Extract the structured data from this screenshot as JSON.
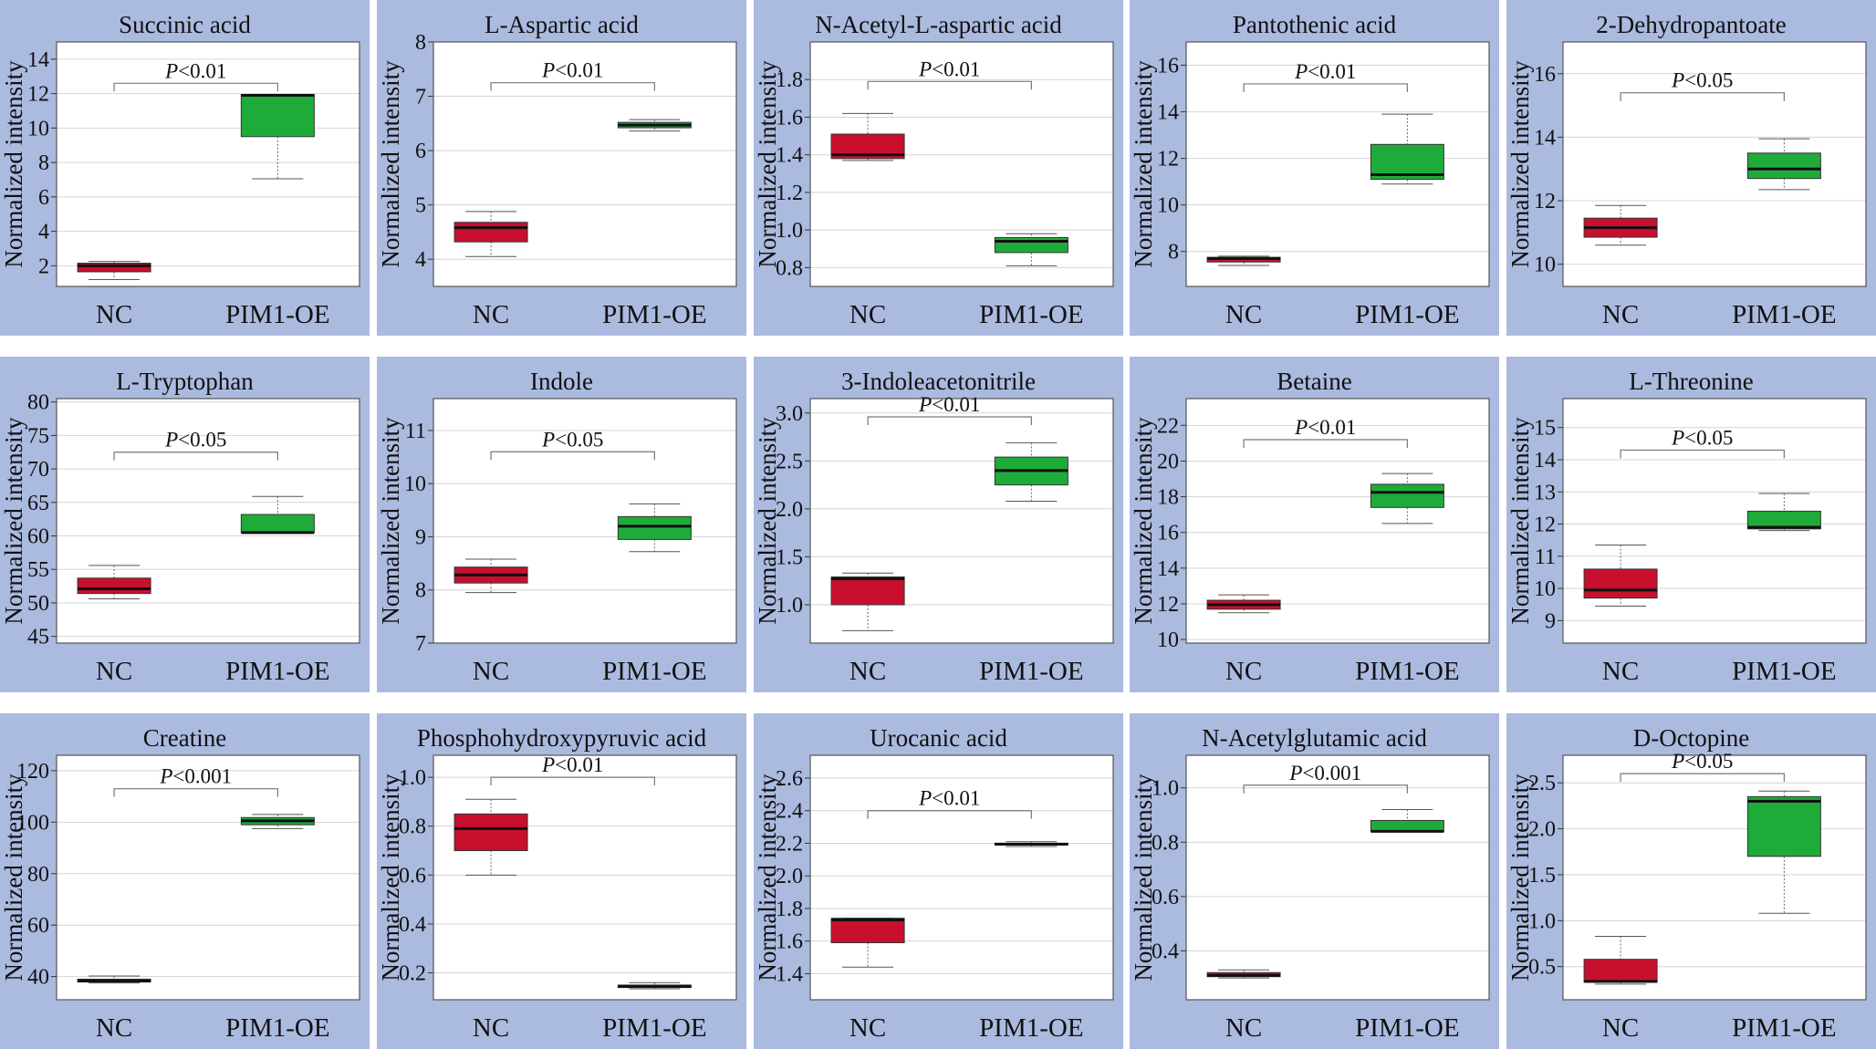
{
  "colors": {
    "panel_bg": "#abbadf",
    "nc": "#c8102e",
    "oe": "#1fab3a"
  },
  "chart_data": [
    {
      "type": "box",
      "title": "Succinic acid",
      "ylabel": "Normalized intensity",
      "categories": [
        "NC",
        "PIM1-OE"
      ],
      "ylim": [
        0.8,
        15
      ],
      "yticks": [
        "2",
        "4",
        "6",
        "8",
        "10",
        "12",
        "14"
      ],
      "p_label": "P<0.01",
      "p_y": 12.6,
      "series": [
        {
          "name": "NC",
          "min": 1.2,
          "q1": 1.65,
          "median": 2.0,
          "q3": 2.15,
          "max": 2.25
        },
        {
          "name": "PIM1-OE",
          "min": 7.05,
          "q1": 9.5,
          "median": 11.9,
          "q3": 11.95,
          "max": 11.95
        }
      ]
    },
    {
      "type": "box",
      "title": "L-Aspartic acid",
      "ylabel": "Normalized intensity",
      "categories": [
        "NC",
        "PIM1-OE"
      ],
      "ylim": [
        3.5,
        8
      ],
      "yticks": [
        "4",
        "5",
        "6",
        "7",
        "8"
      ],
      "p_label": "P<0.01",
      "p_y": 7.25,
      "series": [
        {
          "name": "NC",
          "min": 4.05,
          "q1": 4.32,
          "median": 4.58,
          "q3": 4.68,
          "max": 4.88
        },
        {
          "name": "PIM1-OE",
          "min": 6.36,
          "q1": 6.42,
          "median": 6.47,
          "q3": 6.52,
          "max": 6.57
        }
      ]
    },
    {
      "type": "box",
      "title": "N-Acetyl-L-aspartic acid",
      "ylabel": "Normalized intensity",
      "categories": [
        "NC",
        "PIM1-OE"
      ],
      "ylim": [
        0.7,
        2.0
      ],
      "yticks": [
        "0.8",
        "1.0",
        "1.2",
        "1.4",
        "1.6",
        "1.8"
      ],
      "p_label": "P<0.01",
      "p_y": 1.79,
      "series": [
        {
          "name": "NC",
          "min": 1.37,
          "q1": 1.38,
          "median": 1.4,
          "q3": 1.51,
          "max": 1.62
        },
        {
          "name": "PIM1-OE",
          "min": 0.81,
          "q1": 0.88,
          "median": 0.94,
          "q3": 0.96,
          "max": 0.98
        }
      ]
    },
    {
      "type": "box",
      "title": "Pantothenic acid",
      "ylabel": "Normalized intensity",
      "categories": [
        "NC",
        "PIM1-OE"
      ],
      "ylim": [
        6.5,
        17
      ],
      "yticks": [
        "8",
        "10",
        "12",
        "14",
        "16"
      ],
      "p_label": "P<0.01",
      "p_y": 15.2,
      "series": [
        {
          "name": "NC",
          "min": 7.4,
          "q1": 7.55,
          "median": 7.7,
          "q3": 7.75,
          "max": 7.8
        },
        {
          "name": "PIM1-OE",
          "min": 10.9,
          "q1": 11.1,
          "median": 11.3,
          "q3": 12.6,
          "max": 13.9
        }
      ]
    },
    {
      "type": "box",
      "title": "2-Dehydropantoate",
      "ylabel": "Normalized intensity",
      "categories": [
        "NC",
        "PIM1-OE"
      ],
      "ylim": [
        9.3,
        17
      ],
      "yticks": [
        "10",
        "12",
        "14",
        "16"
      ],
      "p_label": "P<0.05",
      "p_y": 15.4,
      "series": [
        {
          "name": "NC",
          "min": 10.6,
          "q1": 10.85,
          "median": 11.15,
          "q3": 11.45,
          "max": 11.85
        },
        {
          "name": "PIM1-OE",
          "min": 12.35,
          "q1": 12.7,
          "median": 13.0,
          "q3": 13.5,
          "max": 13.95
        }
      ]
    },
    {
      "type": "box",
      "title": "L-Tryptophan",
      "ylabel": "Normalized intensity",
      "categories": [
        "NC",
        "PIM1-OE"
      ],
      "ylim": [
        44,
        80.5
      ],
      "yticks": [
        "45",
        "50",
        "55",
        "60",
        "65",
        "70",
        "75",
        "80"
      ],
      "p_label": "P<0.05",
      "p_y": 72.5,
      "series": [
        {
          "name": "NC",
          "min": 50.6,
          "q1": 51.4,
          "median": 52.1,
          "q3": 53.7,
          "max": 55.6
        },
        {
          "name": "PIM1-OE",
          "min": 60.4,
          "q1": 60.5,
          "median": 60.5,
          "q3": 63.2,
          "max": 65.9
        }
      ]
    },
    {
      "type": "box",
      "title": "Indole",
      "ylabel": "Normalized intensity",
      "categories": [
        "NC",
        "PIM1-OE"
      ],
      "ylim": [
        7,
        11.6
      ],
      "yticks": [
        "7",
        "8",
        "9",
        "10",
        "11"
      ],
      "p_label": "P<0.05",
      "p_y": 10.6,
      "series": [
        {
          "name": "NC",
          "min": 7.95,
          "q1": 8.13,
          "median": 8.28,
          "q3": 8.43,
          "max": 8.58
        },
        {
          "name": "PIM1-OE",
          "min": 8.72,
          "q1": 8.95,
          "median": 9.2,
          "q3": 9.38,
          "max": 9.62
        }
      ]
    },
    {
      "type": "box",
      "title": "3-Indoleacetonitrile",
      "ylabel": "Normalized intensity",
      "categories": [
        "NC",
        "PIM1-OE"
      ],
      "ylim": [
        0.6,
        3.15
      ],
      "yticks": [
        "1.0",
        "1.5",
        "2.0",
        "2.5",
        "3.0"
      ],
      "p_label": "P<0.01",
      "p_y": 2.96,
      "series": [
        {
          "name": "NC",
          "min": 0.73,
          "q1": 1.0,
          "median": 1.27,
          "q3": 1.29,
          "max": 1.33
        },
        {
          "name": "PIM1-OE",
          "min": 2.08,
          "q1": 2.25,
          "median": 2.4,
          "q3": 2.54,
          "max": 2.69
        }
      ]
    },
    {
      "type": "box",
      "title": "Betaine",
      "ylabel": "Normalized intensity",
      "categories": [
        "NC",
        "PIM1-OE"
      ],
      "ylim": [
        9.8,
        23.5
      ],
      "yticks": [
        "10",
        "12",
        "14",
        "16",
        "18",
        "20",
        "22"
      ],
      "p_label": "P<0.01",
      "p_y": 21.2,
      "series": [
        {
          "name": "NC",
          "min": 11.5,
          "q1": 11.7,
          "median": 11.95,
          "q3": 12.2,
          "max": 12.5
        },
        {
          "name": "PIM1-OE",
          "min": 16.5,
          "q1": 17.4,
          "median": 18.25,
          "q3": 18.7,
          "max": 19.3
        }
      ]
    },
    {
      "type": "box",
      "title": "L-Threonine",
      "ylabel": "Normalized intensity",
      "categories": [
        "NC",
        "PIM1-OE"
      ],
      "ylim": [
        8.3,
        15.9
      ],
      "yticks": [
        "9",
        "10",
        "11",
        "12",
        "13",
        "14",
        "15"
      ],
      "p_label": "P<0.05",
      "p_y": 14.3,
      "series": [
        {
          "name": "NC",
          "min": 9.45,
          "q1": 9.7,
          "median": 9.95,
          "q3": 10.6,
          "max": 11.35
        },
        {
          "name": "PIM1-OE",
          "min": 11.8,
          "q1": 11.85,
          "median": 11.9,
          "q3": 12.4,
          "max": 12.95
        }
      ]
    },
    {
      "type": "box",
      "title": "Creatine",
      "ylabel": "Normalized intensity",
      "categories": [
        "NC",
        "PIM1-OE"
      ],
      "ylim": [
        31,
        126
      ],
      "yticks": [
        "40",
        "60",
        "80",
        "100",
        "120"
      ],
      "p_label": "P<0.001",
      "p_y": 113,
      "series": [
        {
          "name": "NC",
          "min": 37.5,
          "q1": 37.9,
          "median": 38.3,
          "q3": 39.0,
          "max": 40.2
        },
        {
          "name": "PIM1-OE",
          "min": 97.5,
          "q1": 99.0,
          "median": 100.5,
          "q3": 101.8,
          "max": 103.0
        }
      ]
    },
    {
      "type": "box",
      "title": "Phosphohydroxypyruvic acid",
      "ylabel": "Normalized intensity",
      "categories": [
        "NC",
        "PIM1-OE"
      ],
      "ylim": [
        0.09,
        1.09
      ],
      "yticks": [
        "0.2",
        "0.4",
        "0.6",
        "0.8",
        "1.0"
      ],
      "p_label": "P<0.01",
      "p_y": 1.0,
      "series": [
        {
          "name": "NC",
          "min": 0.6,
          "q1": 0.7,
          "median": 0.79,
          "q3": 0.85,
          "max": 0.91
        },
        {
          "name": "PIM1-OE",
          "min": 0.135,
          "q1": 0.14,
          "median": 0.145,
          "q3": 0.15,
          "max": 0.16
        }
      ]
    },
    {
      "type": "box",
      "title": "Urocanic acid",
      "ylabel": "Normalized intensity",
      "categories": [
        "NC",
        "PIM1-OE"
      ],
      "ylim": [
        1.24,
        2.74
      ],
      "yticks": [
        "1.4",
        "1.6",
        "1.8",
        "2.0",
        "2.2",
        "2.4",
        "2.6"
      ],
      "p_label": "P<0.01",
      "p_y": 2.4,
      "series": [
        {
          "name": "NC",
          "min": 1.44,
          "q1": 1.59,
          "median": 1.73,
          "q3": 1.74,
          "max": 1.74
        },
        {
          "name": "PIM1-OE",
          "min": 2.18,
          "q1": 2.19,
          "median": 2.195,
          "q3": 2.2,
          "max": 2.21
        }
      ]
    },
    {
      "type": "box",
      "title": "N-Acetylglutamic acid",
      "ylabel": "Normalized intensity",
      "categories": [
        "NC",
        "PIM1-OE"
      ],
      "ylim": [
        0.22,
        1.12
      ],
      "yticks": [
        "0.4",
        "0.6",
        "0.8",
        "1.0"
      ],
      "p_label": "P<0.001",
      "p_y": 1.01,
      "series": [
        {
          "name": "NC",
          "min": 0.3,
          "q1": 0.305,
          "median": 0.31,
          "q3": 0.32,
          "max": 0.33
        },
        {
          "name": "PIM1-OE",
          "min": 0.84,
          "q1": 0.84,
          "median": 0.84,
          "q3": 0.88,
          "max": 0.92
        }
      ]
    },
    {
      "type": "box",
      "title": "D-Octopine",
      "ylabel": "Normalized intensity",
      "categories": [
        "NC",
        "PIM1-OE"
      ],
      "ylim": [
        0.14,
        2.8
      ],
      "yticks": [
        "0.5",
        "1.0",
        "1.5",
        "2.0",
        "2.5"
      ],
      "p_label": "P<0.05",
      "p_y": 2.6,
      "series": [
        {
          "name": "NC",
          "min": 0.31,
          "q1": 0.33,
          "median": 0.34,
          "q3": 0.58,
          "max": 0.83
        },
        {
          "name": "PIM1-OE",
          "min": 1.08,
          "q1": 1.7,
          "median": 2.3,
          "q3": 2.35,
          "max": 2.41
        }
      ]
    }
  ]
}
